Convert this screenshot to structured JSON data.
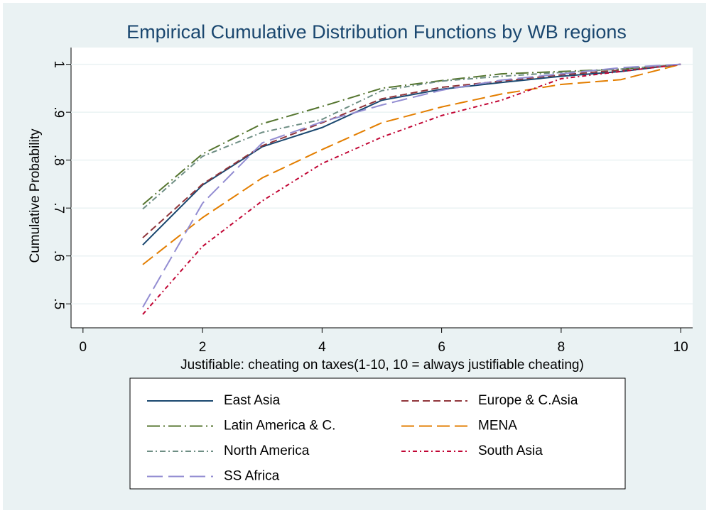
{
  "chart_data": {
    "type": "line",
    "title": "Empirical Cumulative Distribution Functions by WB regions",
    "x_label": "Justifiable: cheating on taxes(1-10, 10 = always justifiable cheating)",
    "y_label": "Cumulative Probability",
    "x": [
      1,
      2,
      3,
      4,
      5,
      6,
      7,
      8,
      9,
      10
    ],
    "xlim": [
      -0.2,
      10.2
    ],
    "xticks": [
      0,
      2,
      4,
      6,
      8,
      10
    ],
    "ylim": [
      0.45,
      1.035
    ],
    "yticks": [
      {
        "value": 0.5,
        "label": ".5"
      },
      {
        "value": 0.6,
        "label": ".6"
      },
      {
        "value": 0.7,
        "label": ".7"
      },
      {
        "value": 0.8,
        "label": ".8"
      },
      {
        "value": 0.9,
        "label": ".9"
      },
      1
    ],
    "grid": true,
    "series": [
      {
        "name": "East Asia",
        "color": "#1a476f",
        "dash": "none",
        "values": [
          0.623,
          0.748,
          0.828,
          0.868,
          0.925,
          0.948,
          0.962,
          0.975,
          0.985,
          1
        ]
      },
      {
        "name": "Europe & C.Asia",
        "color": "#90353b",
        "dash": "10,5",
        "values": [
          0.638,
          0.75,
          0.83,
          0.878,
          0.928,
          0.952,
          0.965,
          0.978,
          0.988,
          1
        ]
      },
      {
        "name": "Latin America & C.",
        "color": "#55752f",
        "dash": "18,5,2,5",
        "values": [
          0.707,
          0.813,
          0.876,
          0.912,
          0.95,
          0.966,
          0.98,
          0.985,
          0.99,
          1
        ]
      },
      {
        "name": "MENA",
        "color": "#e37e00",
        "dash": "18,7",
        "values": [
          0.582,
          0.68,
          0.763,
          0.822,
          0.878,
          0.911,
          0.938,
          0.958,
          0.968,
          1
        ]
      },
      {
        "name": "North America",
        "color": "#6e8e84",
        "dash": "8,4,2,4",
        "values": [
          0.698,
          0.808,
          0.858,
          0.885,
          0.945,
          0.965,
          0.975,
          0.983,
          0.99,
          1
        ]
      },
      {
        "name": "South Asia",
        "color": "#c10534",
        "dash": "6,4,2,4",
        "values": [
          0.478,
          0.62,
          0.715,
          0.793,
          0.848,
          0.893,
          0.925,
          0.97,
          0.985,
          1
        ]
      },
      {
        "name": "SS Africa",
        "color": "#938dd2",
        "dash": "22,8",
        "values": [
          0.493,
          0.71,
          0.836,
          0.88,
          0.915,
          0.946,
          0.967,
          0.98,
          0.993,
          1
        ]
      }
    ]
  }
}
